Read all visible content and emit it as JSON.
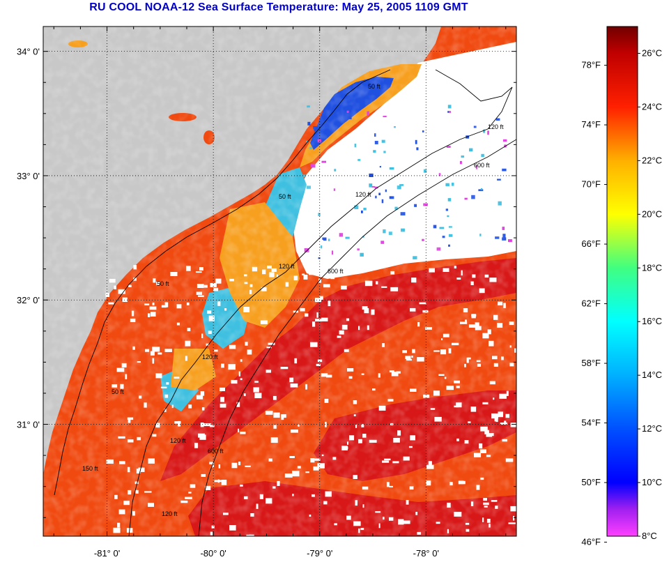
{
  "title": "RU COOL  NOAA-12  Sea Surface Temperature:  May 25, 2005 1109 GMT",
  "map": {
    "lon_range": [
      -81.6,
      -77.15
    ],
    "lat_range": [
      30.1,
      34.2
    ],
    "lon_ticks": [
      {
        "value": -81,
        "label": "-81° 0'"
      },
      {
        "value": -80,
        "label": "-80° 0'"
      },
      {
        "value": -79,
        "label": "-79° 0'"
      },
      {
        "value": -78,
        "label": "-78° 0'"
      }
    ],
    "lat_ticks": [
      {
        "value": 34,
        "label": "34° 0'"
      },
      {
        "value": 33,
        "label": "33° 0'"
      },
      {
        "value": 32,
        "label": "32° 0'"
      },
      {
        "value": 31,
        "label": "31° 0'"
      }
    ],
    "grid": true,
    "colors": {
      "land": "#c8c8c8",
      "cloud": "#ffffff",
      "warm_core": "#d81818",
      "warm": "#f04a10",
      "mid": "#f7a020",
      "cool": "#40c0e0",
      "cold": "#2050e0",
      "coldest": "#e040e0",
      "contour": "#000000"
    },
    "contour_labels": [
      "50 ft",
      "50 ft",
      "120 ft",
      "120 ft",
      "120 ft",
      "600 ft",
      "600 ft",
      "120 ft",
      "50 ft",
      "50 ft",
      "150 ft",
      "600 ft",
      "120 ft",
      "120 ft"
    ]
  },
  "colorbar": {
    "celsius_labels": [
      "26°C",
      "24°C",
      "22°C",
      "20°C",
      "18°C",
      "16°C",
      "14°C",
      "12°C",
      "10°C",
      "8°C"
    ],
    "fahrenheit_labels": [
      "78°F",
      "74°F",
      "70°F",
      "66°F",
      "62°F",
      "58°F",
      "54°F",
      "50°F",
      "46°F"
    ],
    "celsius_range": [
      8,
      27
    ],
    "stops": [
      {
        "c": 8,
        "color": "#ff40ff"
      },
      {
        "c": 9,
        "color": "#a020f0"
      },
      {
        "c": 10,
        "color": "#0000ff"
      },
      {
        "c": 12,
        "color": "#0050ff"
      },
      {
        "c": 14,
        "color": "#00b0ff"
      },
      {
        "c": 16,
        "color": "#00ffff"
      },
      {
        "c": 18,
        "color": "#40ff80"
      },
      {
        "c": 20,
        "color": "#ffff00"
      },
      {
        "c": 22,
        "color": "#ffb000"
      },
      {
        "c": 24,
        "color": "#ff2000"
      },
      {
        "c": 26,
        "color": "#c00000"
      },
      {
        "c": 27,
        "color": "#700000"
      }
    ]
  }
}
